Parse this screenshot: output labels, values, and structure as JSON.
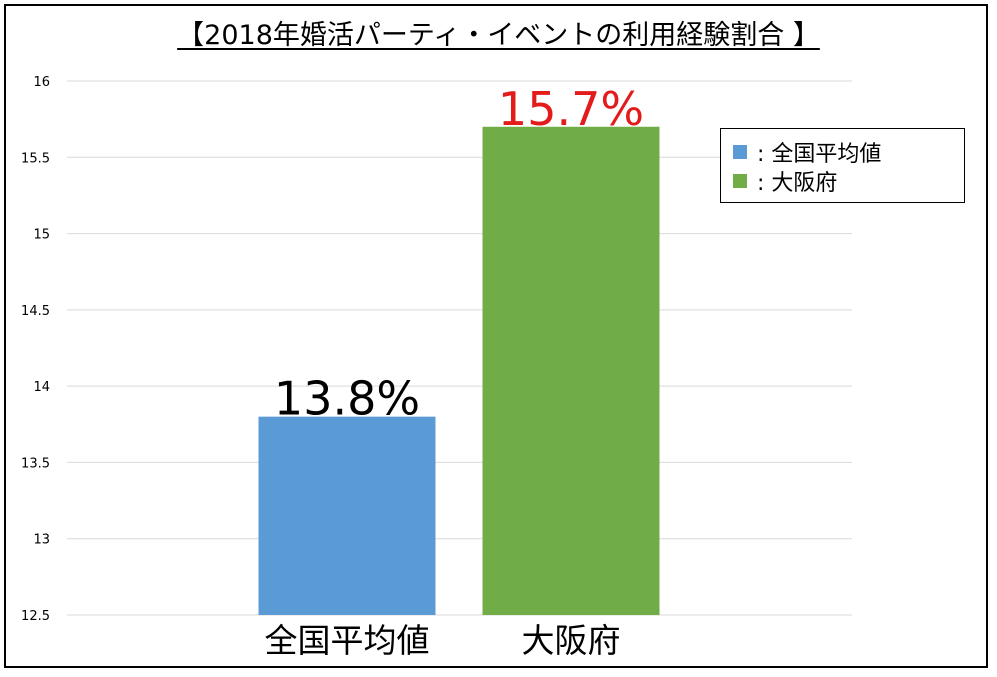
{
  "chart_data": {
    "type": "bar",
    "title": "【2018年婚活パーティ・イベントの利用経験割合 】",
    "categories": [
      "全国平均値",
      "大阪府"
    ],
    "values": [
      13.8,
      15.7
    ],
    "value_labels": [
      "13.8%",
      "15.7%"
    ],
    "value_label_colors": [
      "#000000",
      "#e31b1b"
    ],
    "bar_colors": [
      "#5b9bd5",
      "#70ad47"
    ],
    "ylim": [
      12.5,
      16
    ],
    "yticks": [
      "12.5",
      "13",
      "13.5",
      "14",
      "14.5",
      "15",
      "15.5",
      "16"
    ],
    "grid": true,
    "legend_position": "top-right",
    "legend": [
      {
        "label": ": 全国平均値",
        "color": "#5b9bd5"
      },
      {
        "label": ": 大阪府",
        "color": "#70ad47"
      }
    ]
  }
}
